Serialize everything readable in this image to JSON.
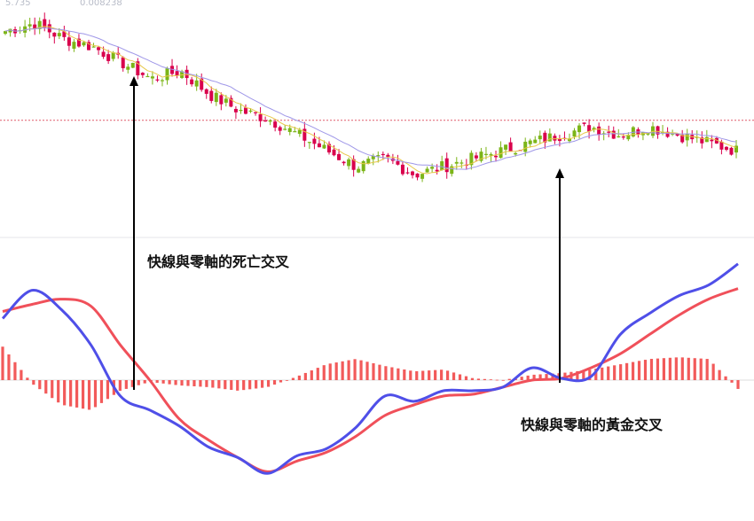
{
  "header": {
    "left_text": "5.735",
    "right_text": "0.008238"
  },
  "annotations": {
    "death_cross": "快線與零軸的死亡交叉",
    "golden_cross": "快線與零軸的黃金交叉"
  },
  "chart_data": [
    {
      "type": "candlestick",
      "title": "",
      "colors": {
        "up": "#7cb518",
        "down": "#d9004c",
        "ma_short": "#e8c84a",
        "ma_long": "#9f97e8",
        "reference": "#e05c6c"
      },
      "price_points": [
        35,
        36,
        34,
        33,
        31,
        29,
        30,
        27,
        25,
        24,
        22,
        20,
        18,
        19,
        17,
        18,
        19,
        20,
        21,
        22,
        23,
        22,
        23,
        22,
        21,
        20
      ],
      "reference_level": 23.8
    },
    {
      "type": "line",
      "title": "",
      "colors": {
        "fast": "#4f4fe8",
        "slow": "#f0505a",
        "histogram": "#f25a5a",
        "zero": "#bbbbbb"
      },
      "x": [
        0,
        10,
        20,
        30,
        40,
        50,
        60,
        70,
        80,
        90,
        100,
        110,
        120,
        130,
        140,
        150,
        160,
        170,
        180,
        190,
        200,
        210,
        220,
        230,
        240,
        250
      ],
      "series": [
        {
          "key": "fast",
          "values": [
            3.5,
            5.1,
            4.0,
            2.0,
            -0.9,
            -1.7,
            -2.6,
            -3.8,
            -4.4,
            -5.3,
            -4.3,
            -3.9,
            -2.7,
            -0.9,
            -1.2,
            -0.6,
            -0.6,
            -0.4,
            0.7,
            0.1,
            0.2,
            2.6,
            3.8,
            4.8,
            5.4,
            6.6
          ]
        },
        {
          "key": "slow",
          "values": [
            3.9,
            4.3,
            4.6,
            4.2,
            2.0,
            0.0,
            -2.2,
            -3.4,
            -4.4,
            -5.2,
            -4.6,
            -4.1,
            -3.2,
            -2.0,
            -1.4,
            -0.9,
            -0.8,
            -0.4,
            0.0,
            0.1,
            0.7,
            1.5,
            2.6,
            3.7,
            4.6,
            5.2
          ]
        },
        {
          "key": "histogram",
          "values": [
            1.9,
            -0.2,
            -1.4,
            -1.7,
            -0.6,
            -0.1,
            -0.3,
            -0.4,
            -0.6,
            -0.4,
            0.2,
            0.9,
            1.2,
            0.8,
            0.5,
            0.6,
            0.1,
            0.0,
            0.3,
            0.4,
            0.6,
            0.9,
            1.2,
            1.3,
            1.2,
            -0.5
          ]
        }
      ],
      "ylim": [
        -8,
        8
      ]
    }
  ]
}
